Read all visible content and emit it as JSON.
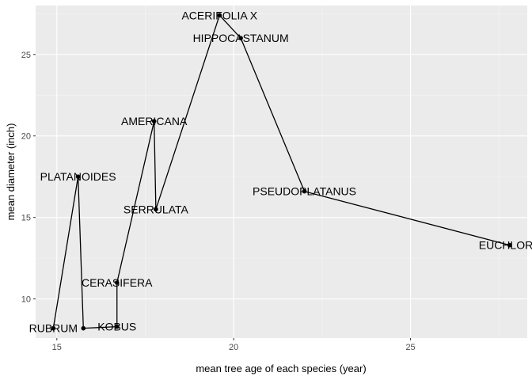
{
  "chart_data": {
    "type": "line",
    "xlabel": "mean tree age of each species (year)",
    "ylabel": "mean diameter (inch)",
    "xlim": [
      14.4,
      28.3
    ],
    "ylim": [
      7.6,
      28.0
    ],
    "x_ticks": [
      15,
      20,
      25
    ],
    "y_ticks": [
      10,
      15,
      20,
      25
    ],
    "grid": true,
    "legend": "none",
    "colors": {
      "panel": "#ebebeb",
      "grid_major": "#ffffff",
      "grid_minor": "#f5f5f5",
      "line": "#000000",
      "text": "#000000",
      "tick_text": "#4d4d4d"
    },
    "series": [
      {
        "points": [
          {
            "label": "RUBRUM",
            "x": 14.9,
            "y": 8.2
          },
          {
            "label": "PLATANOIDES",
            "x": 15.6,
            "y": 17.5
          },
          {
            "label": "",
            "x": 15.75,
            "y": 8.2
          },
          {
            "label": "KOBUS",
            "x": 16.7,
            "y": 8.3
          },
          {
            "label": "CERASIFERA",
            "x": 16.7,
            "y": 11.0
          },
          {
            "label": "AMERICANA",
            "x": 17.75,
            "y": 20.9
          },
          {
            "label": "SERRULATA",
            "x": 17.8,
            "y": 15.5
          },
          {
            "label": "ACERIFOLIA   X",
            "x": 19.6,
            "y": 27.4
          },
          {
            "label": "HIPPOCASTANUM",
            "x": 20.2,
            "y": 26.0
          },
          {
            "label": "PSEUDOPLATANUS",
            "x": 22.0,
            "y": 16.6
          },
          {
            "label": "EUCHLORA",
            "x": 27.8,
            "y": 13.3
          }
        ]
      }
    ]
  }
}
